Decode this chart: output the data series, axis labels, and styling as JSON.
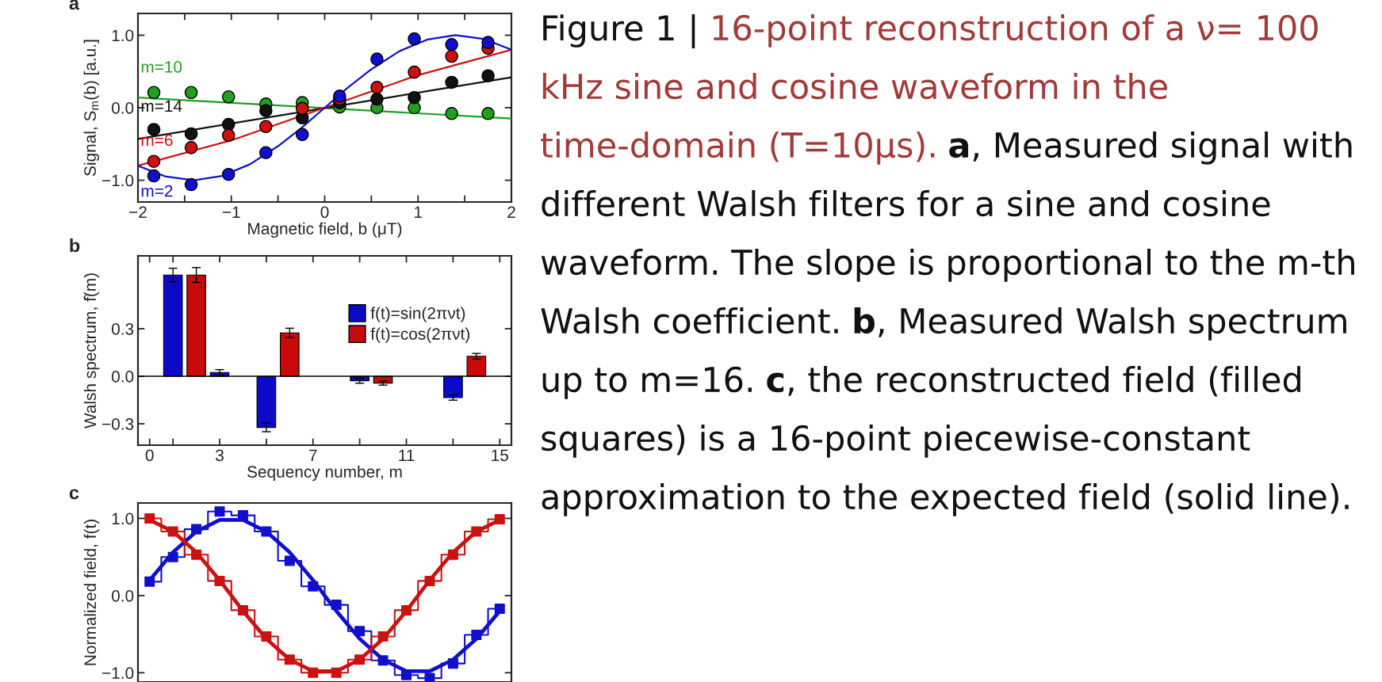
{
  "chart_data": [
    {
      "type": "scatter",
      "title": "a",
      "xlabel": "Magnetic field, b (μT)",
      "ylabel": "Signal, S$_{m}$(b) [a.u.]",
      "x": [
        -1.83,
        -1.43,
        -1.03,
        -0.63,
        -0.24,
        0.16,
        0.56,
        0.96,
        1.36,
        1.75
      ],
      "xlim": [
        -2,
        2
      ],
      "xticks": [
        {
          "value": -2,
          "label": "−2"
        },
        {
          "value": -1.5,
          "label": null
        },
        {
          "value": -1,
          "label": "−1"
        },
        {
          "value": -0.5,
          "label": null
        },
        0,
        {
          "value": 0.5,
          "label": null
        },
        1,
        {
          "value": 1.5,
          "label": null
        },
        2
      ],
      "ylim": [
        -1.3,
        1.3
      ],
      "yticks": [
        {
          "value": -1,
          "label": "−1.0"
        },
        {
          "value": 0,
          "label": "0.0"
        },
        {
          "value": 1,
          "label": "1.0"
        }
      ],
      "legend": false,
      "series": [
        {
          "name": "m=10",
          "marker": "circle",
          "color": "#1fa01f",
          "values": [
            0.21,
            0.21,
            0.15,
            0.05,
            0.07,
            0.01,
            0.0,
            0.0,
            -0.08,
            -0.08
          ]
        },
        {
          "name": "m=14",
          "marker": "circle",
          "color": "#111111",
          "values": [
            -0.3,
            -0.36,
            -0.23,
            -0.04,
            -0.14,
            0.07,
            0.12,
            0.14,
            0.35,
            0.44
          ]
        },
        {
          "name": "m=6",
          "marker": "circle",
          "color": "#cc1111",
          "values": [
            -0.74,
            -0.55,
            -0.38,
            -0.26,
            -0.01,
            0.12,
            0.28,
            0.49,
            0.71,
            0.82
          ]
        },
        {
          "name": "m=2",
          "marker": "circle",
          "color": "#1010cc",
          "values": [
            -0.94,
            -1.06,
            -0.92,
            -0.62,
            -0.37,
            0.16,
            0.67,
            0.95,
            0.87,
            0.9
          ]
        },
        {
          "type": "line",
          "color": "#1fa01f",
          "x": [
            -2,
            2
          ],
          "values": [
            0.14,
            -0.15
          ]
        },
        {
          "type": "line",
          "color": "#111111",
          "x": [
            -2,
            2
          ],
          "values": [
            -0.43,
            0.42
          ]
        },
        {
          "type": "line",
          "color": "#cc1111",
          "x": [
            -2,
            -1,
            0,
            1,
            2
          ],
          "values": [
            -0.8,
            -0.45,
            0,
            0.45,
            0.8
          ]
        },
        {
          "type": "line",
          "color": "#1010cc",
          "x": [
            -2,
            -1.7,
            -1.4,
            -1.1,
            -0.8,
            -0.5,
            -0.25,
            0,
            0.25,
            0.5,
            0.8,
            1.1,
            1.4,
            1.7,
            2
          ],
          "values": [
            -0.8,
            -0.95,
            -1.0,
            -0.94,
            -0.78,
            -0.53,
            -0.28,
            0,
            0.28,
            0.53,
            0.78,
            0.94,
            1.0,
            0.95,
            0.8
          ]
        }
      ]
    },
    {
      "type": "bar",
      "title": "b",
      "xlabel": "Sequency number, m",
      "ylabel": "Walsh spectrum, f̂(m)",
      "xlim": [
        -0.5,
        15.5
      ],
      "xticks": [
        0,
        {
          "value": 1,
          "label": null
        },
        3,
        {
          "value": 5,
          "label": null
        },
        7,
        {
          "value": 9,
          "label": null
        },
        11,
        {
          "value": 13,
          "label": null
        },
        15
      ],
      "ylim": [
        -0.435,
        0.76
      ],
      "yticks": [
        {
          "value": -0.3,
          "label": "−0.3"
        },
        {
          "value": 0,
          "label": "0.0"
        },
        {
          "value": 0.3,
          "label": "0.3"
        }
      ],
      "legend": "top right",
      "ref_lines": [
        {
          "axis": "y",
          "value": 0
        }
      ],
      "series": [
        {
          "name": "f(t)=sin(2πνt)",
          "color": "#0a0ac8",
          "x": [
            1,
            3,
            5,
            9,
            13
          ],
          "values": [
            0.639,
            0.024,
            -0.323,
            -0.028,
            -0.135
          ],
          "errors": [
            0.043,
            0.018,
            0.027,
            0.016,
            0.016
          ]
        },
        {
          "name": "f(t)=cos(2πνt)",
          "color": "#c80a0a",
          "x": [
            2,
            6,
            10,
            14
          ],
          "values": [
            0.639,
            0.274,
            -0.043,
            0.126
          ],
          "errors": [
            0.047,
            0.029,
            0.013,
            0.018
          ]
        }
      ]
    },
    {
      "type": "line",
      "title": "c",
      "ylabel": "Normalized field, f(t)",
      "categories": [
        null,
        null,
        null,
        null,
        null,
        null,
        null,
        null,
        null,
        null,
        null,
        null,
        null,
        null,
        null,
        null
      ],
      "ylim": [
        -1.12,
        1.2
      ],
      "yticks": [
        {
          "value": -1,
          "label": "−1.0"
        },
        {
          "value": 0,
          "label": "0.0"
        },
        {
          "value": 1,
          "label": "1.0"
        }
      ],
      "tick_labels": "y",
      "series": [
        {
          "type": "step",
          "color": "#1010cc",
          "values": [
            0.18,
            0.5,
            0.86,
            1.09,
            1.04,
            0.83,
            0.45,
            0.12,
            -0.12,
            -0.46,
            -0.84,
            -1.03,
            -1.07,
            -0.88,
            -0.51,
            -0.17
          ]
        },
        {
          "type": "step",
          "color": "#cc1111",
          "values": [
            1.0,
            0.83,
            0.53,
            0.19,
            -0.19,
            -0.53,
            -0.83,
            -1.0,
            -1.0,
            -0.83,
            -0.53,
            -0.19,
            0.19,
            0.53,
            0.83,
            0.99
          ]
        },
        {
          "type": "line",
          "color": "#1010cc",
          "values": [
            0.2,
            0.56,
            0.83,
            0.98,
            0.98,
            0.83,
            0.56,
            0.2,
            -0.2,
            -0.56,
            -0.83,
            -0.98,
            -0.98,
            -0.83,
            -0.56,
            -0.2
          ]
        },
        {
          "type": "line",
          "color": "#cc1111",
          "values": [
            0.98,
            0.83,
            0.56,
            0.2,
            -0.2,
            -0.56,
            -0.83,
            -0.98,
            -0.98,
            -0.83,
            -0.56,
            -0.2,
            0.2,
            0.56,
            0.83,
            0.98
          ]
        },
        {
          "type": "scatter",
          "marker": "square",
          "color": "#1010cc",
          "values": [
            0.18,
            0.5,
            0.86,
            1.09,
            1.04,
            0.83,
            0.45,
            0.12,
            -0.12,
            -0.46,
            -0.84,
            -1.03,
            -1.07,
            -0.88,
            -0.51,
            -0.17
          ]
        },
        {
          "type": "scatter",
          "marker": "square",
          "color": "#cc1111",
          "values": [
            1.0,
            0.83,
            0.53,
            0.19,
            -0.19,
            -0.53,
            -0.83,
            -1.0,
            -1.0,
            -0.83,
            -0.53,
            -0.19,
            0.19,
            0.53,
            0.83,
            0.99
          ]
        }
      ]
    },
    {
      "type": "other",
      "title": "16-point reconstruction of a ν= 100 kHz sine and cosine waveform in the time-domain (T=10μs).",
      "annotations": [
        "Figure 1 |",
        "a",
        ", Measured signal with different Walsh filters for a sine and cosine waveform. The slope is proportional to the m-th Walsh coefficient.",
        "b",
        ", Measured Walsh spectrum up to m=16.",
        "c",
        ", the reconstructed field (filled squares) is a 16-point piecewise-constant approximation to the expected field (solid line)."
      ]
    }
  ]
}
